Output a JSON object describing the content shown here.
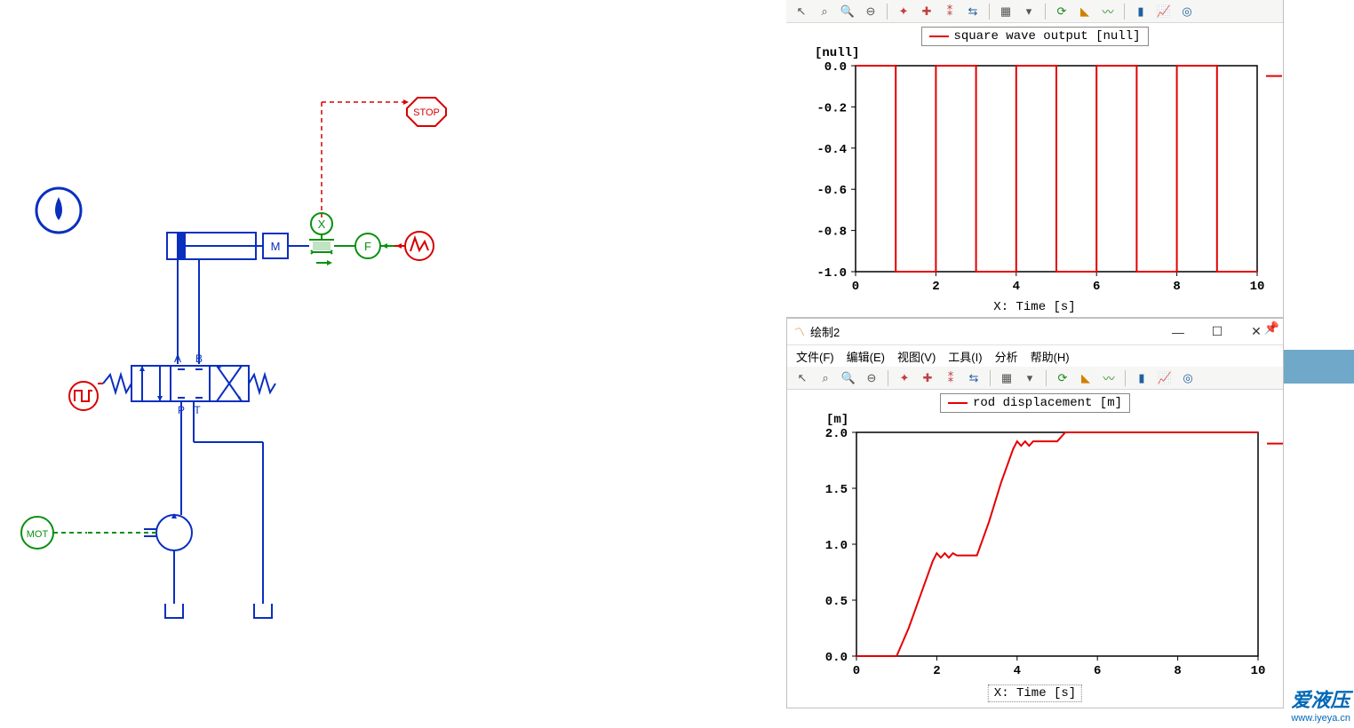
{
  "schematic": {
    "water_drop_icon_color": "#0a2fbf",
    "stop_label": "STOP",
    "mass_label": "M",
    "force_symbol": "F",
    "multiply_symbol": "X",
    "mot_label": "MOT",
    "valve_ports": {
      "A": "A",
      "B": "B",
      "P": "P",
      "T": "T"
    },
    "colors": {
      "hydraulic": "#0a2fbf",
      "signal_red": "#d80000",
      "mechanical_green": "#0a9010"
    }
  },
  "chart1": {
    "toolbar_visible": true,
    "legend": "square wave output [null]",
    "legend_color": "#e40000",
    "y_unit": "[null]",
    "x_title": "X: Time [s]",
    "yticks": [
      "0.0",
      "-0.2",
      "-0.4",
      "-0.6",
      "-0.8",
      "-1.0"
    ],
    "ylim": [
      -1.0,
      0.0
    ],
    "xticks": [
      "0",
      "2",
      "4",
      "6",
      "8",
      "10"
    ],
    "xlim": [
      0,
      10
    ],
    "series": {
      "type": "square",
      "color": "#e40000",
      "width": 2,
      "points": [
        [
          0,
          0
        ],
        [
          1,
          0
        ],
        [
          1,
          -1
        ],
        [
          2,
          -1
        ],
        [
          2,
          0
        ],
        [
          3,
          0
        ],
        [
          3,
          -1
        ],
        [
          4,
          -1
        ],
        [
          4,
          0
        ],
        [
          5,
          0
        ],
        [
          5,
          -1
        ],
        [
          6,
          -1
        ],
        [
          6,
          0
        ],
        [
          7,
          0
        ],
        [
          7,
          -1
        ],
        [
          8,
          -1
        ],
        [
          8,
          0
        ],
        [
          9,
          0
        ],
        [
          9,
          -1
        ],
        [
          10,
          -1
        ]
      ]
    },
    "background": "#ffffff",
    "axis_color": "#000000"
  },
  "chart2": {
    "window_title": "绘制2",
    "menubar": [
      "文件(F)",
      "编辑(E)",
      "视图(V)",
      "工具(I)",
      "分析",
      "帮助(H)"
    ],
    "legend": "rod displacement [m]",
    "legend_color": "#e40000",
    "y_unit": "[m]",
    "x_title": "X: Time [s]",
    "yticks": [
      "2.0",
      "1.5",
      "1.0",
      "0.5",
      "0.0"
    ],
    "ylim": [
      0.0,
      2.0
    ],
    "xticks": [
      "0",
      "2",
      "4",
      "6",
      "8",
      "10"
    ],
    "xlim": [
      0,
      10
    ],
    "series": {
      "type": "line",
      "color": "#e40000",
      "width": 2,
      "points": [
        [
          0,
          0
        ],
        [
          1,
          0
        ],
        [
          1.3,
          0.25
        ],
        [
          1.6,
          0.55
        ],
        [
          1.9,
          0.85
        ],
        [
          2.0,
          0.92
        ],
        [
          2.1,
          0.88
        ],
        [
          2.2,
          0.92
        ],
        [
          2.3,
          0.88
        ],
        [
          2.4,
          0.92
        ],
        [
          2.5,
          0.9
        ],
        [
          3.0,
          0.9
        ],
        [
          3.3,
          1.2
        ],
        [
          3.6,
          1.55
        ],
        [
          3.9,
          1.85
        ],
        [
          4.0,
          1.92
        ],
        [
          4.1,
          1.88
        ],
        [
          4.2,
          1.92
        ],
        [
          4.3,
          1.88
        ],
        [
          4.4,
          1.92
        ],
        [
          4.6,
          1.92
        ],
        [
          5.0,
          1.92
        ],
        [
          5.2,
          2.0
        ],
        [
          10,
          2.0
        ]
      ]
    },
    "background": "#ffffff",
    "axis_color": "#000000"
  },
  "watermark": {
    "main": "爱液压",
    "sub": "www.iyeya.cn"
  },
  "toolbar_icons": [
    "cursor",
    "zoom-circle",
    "zoom-in",
    "zoom-out",
    "sep",
    "marker-single",
    "marker-cross",
    "marker-multi",
    "marker-arrows",
    "sep",
    "table",
    "grid",
    "sep",
    "refresh",
    "ruler",
    "wave",
    "sep",
    "bar-chart",
    "trend",
    "target"
  ]
}
